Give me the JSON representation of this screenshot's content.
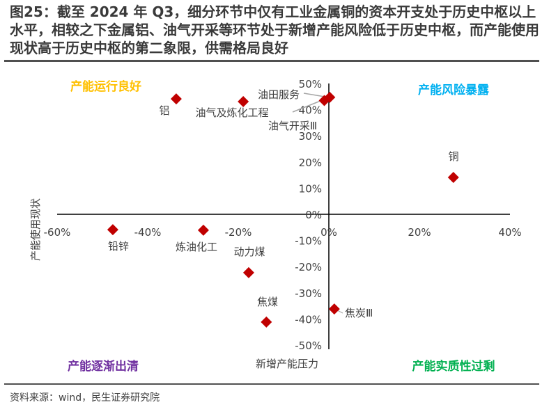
{
  "title": "图25：截至 2024 年 Q3，细分环节中仅有工业金属铜的资本开支处于历史中枢以上水平，相较之下金属铝、油气开采等环节处于新增产能风险低于历史中枢，而产能使用现状高于历史中枢的第二象限，供需格局良好",
  "source": "资料来源：wind，民生证券研究院",
  "chart_data": {
    "type": "scatter",
    "xlabel": "新增产能压力",
    "ylabel": "产能使用现状",
    "xlim": [
      -60,
      40
    ],
    "ylim": [
      -50,
      50
    ],
    "xticks": [
      "-60%",
      "-40%",
      "-20%",
      "0%",
      "20%",
      "40%"
    ],
    "yticks": [
      "-50%",
      "-40%",
      "-30%",
      "-20%",
      "-10%",
      "0%",
      "10%",
      "20%",
      "30%",
      "40%",
      "50%"
    ],
    "grid": false,
    "marker_color": "#C00000",
    "points": [
      {
        "label": "铝",
        "x": -33.7,
        "y": 44.1
      },
      {
        "label": "油气及炼化工程",
        "x": -18.9,
        "y": 43.1
      },
      {
        "label": "油气开采Ⅲ",
        "x": -1.0,
        "y": 43.5
      },
      {
        "label": "油田服务",
        "x": 0.2,
        "y": 44.7
      },
      {
        "label": "铜",
        "x": 27.5,
        "y": 14.1
      },
      {
        "label": "铅锌",
        "x": -47.7,
        "y": -5.9
      },
      {
        "label": "炼油化工",
        "x": -27.7,
        "y": -6.1
      },
      {
        "label": "动力煤",
        "x": -17.7,
        "y": -22.3
      },
      {
        "label": "焦煤",
        "x": -13.8,
        "y": -41.2
      },
      {
        "label": "焦炭Ⅲ",
        "x": 1.2,
        "y": -36.2
      }
    ],
    "quadrants": [
      {
        "text": "产能运行良好",
        "color": "#FFC000"
      },
      {
        "text": "产能风险暴露",
        "color": "#00B0F0"
      },
      {
        "text": "产能逐渐出清",
        "color": "#7030A0"
      },
      {
        "text": "产能实质性过剩",
        "color": "#00B050"
      }
    ]
  }
}
